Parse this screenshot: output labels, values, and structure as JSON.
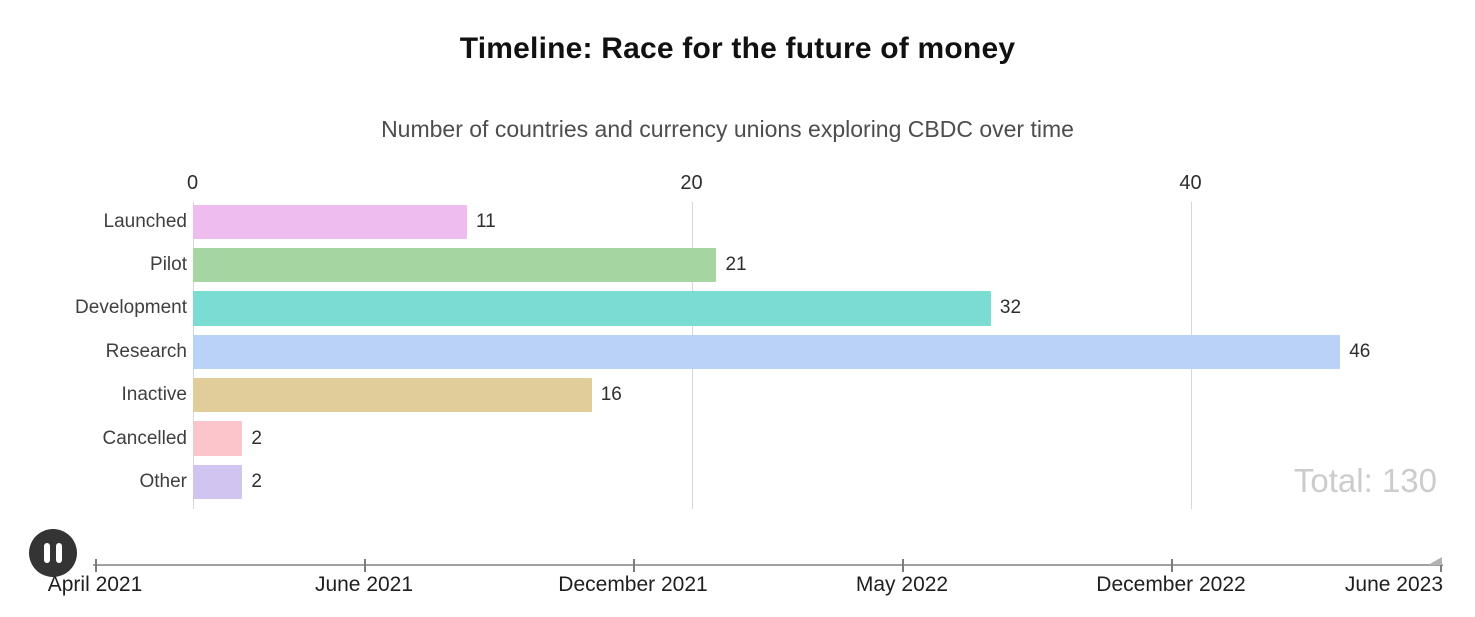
{
  "header": {
    "title": "Timeline: Race for the future of money",
    "subtitle": "Number of countries and currency unions exploring CBDC over time"
  },
  "chart_data": {
    "type": "bar",
    "orientation": "horizontal",
    "title": "Timeline: Race for the future of money",
    "subtitle": "Number of countries and currency unions exploring CBDC over time",
    "categories": [
      "Launched",
      "Pilot",
      "Development",
      "Research",
      "Inactive",
      "Cancelled",
      "Other"
    ],
    "values": [
      11,
      21,
      32,
      46,
      16,
      2,
      2
    ],
    "bar_colors": [
      "#efbcef",
      "#a5d6a1",
      "#7bdcd3",
      "#bad2f7",
      "#e1cd99",
      "#fbc5cb",
      "#d1c4f0"
    ],
    "xticks": [
      0,
      20,
      40
    ],
    "xlim": [
      0,
      51
    ],
    "grid": true,
    "value_labels_shown": true,
    "total_label": "Total: 130",
    "total_value": 130
  },
  "timeline": {
    "labels": [
      "April 2021",
      "June 2021",
      "December 2021",
      "May 2022",
      "December 2022",
      "June 2023"
    ],
    "current_position": "June 2023"
  },
  "controls": {
    "pause_button": "pause-icon"
  },
  "colors": {
    "background": "#ffffff",
    "grid_line": "#d6d6d6",
    "axis_line": "#a0a0a0",
    "total_text": "#cccccc",
    "pause_button_bg": "#343434"
  }
}
